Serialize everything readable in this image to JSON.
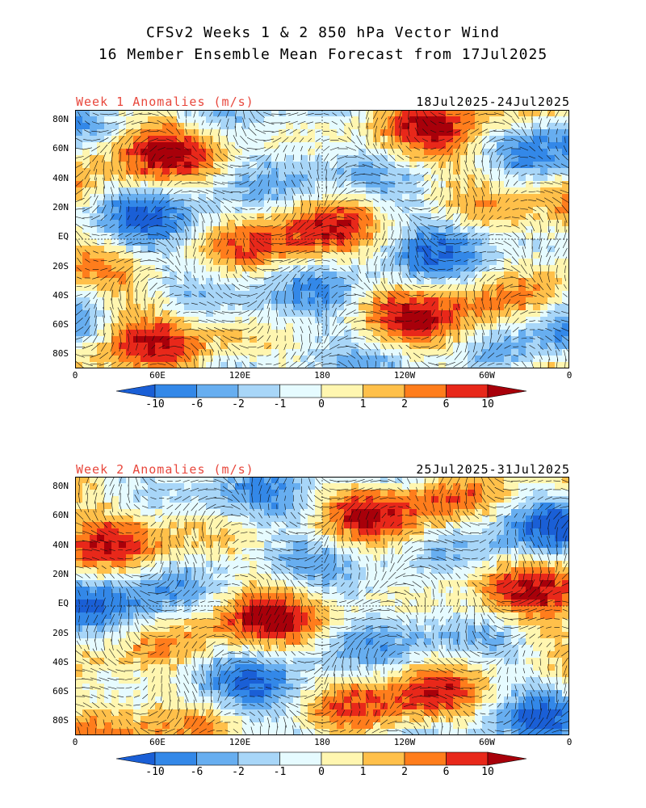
{
  "figure": {
    "title_line1": "CFSv2 Weeks 1 & 2 850 hPa Vector Wind",
    "title_line2": "16 Member Ensemble Mean Forecast from 17Jul2025"
  },
  "panels": [
    {
      "label": "Week 1 Anomalies (m/s)",
      "date_range": "18Jul2025-24Jul2025"
    },
    {
      "label": "Week 2 Anomalies (m/s)",
      "date_range": "25Jul2025-31Jul2025"
    }
  ],
  "lat_labels": [
    "80N",
    "60N",
    "40N",
    "20N",
    "EQ",
    "20S",
    "40S",
    "60S",
    "80S"
  ],
  "lon_labels": [
    "0",
    "60E",
    "120E",
    "180",
    "120W",
    "60W",
    "0"
  ],
  "colorbar": {
    "labels": [
      "-10",
      "-6",
      "-2",
      "-1",
      "0",
      "1",
      "2",
      "6",
      "10"
    ],
    "colors": [
      "#1a5fd6",
      "#3388e8",
      "#67aef0",
      "#a8d6f8",
      "#e6fbff",
      "#fff6b0",
      "#ffc04a",
      "#ff7d1c",
      "#e8281a",
      "#a8000a"
    ]
  }
}
